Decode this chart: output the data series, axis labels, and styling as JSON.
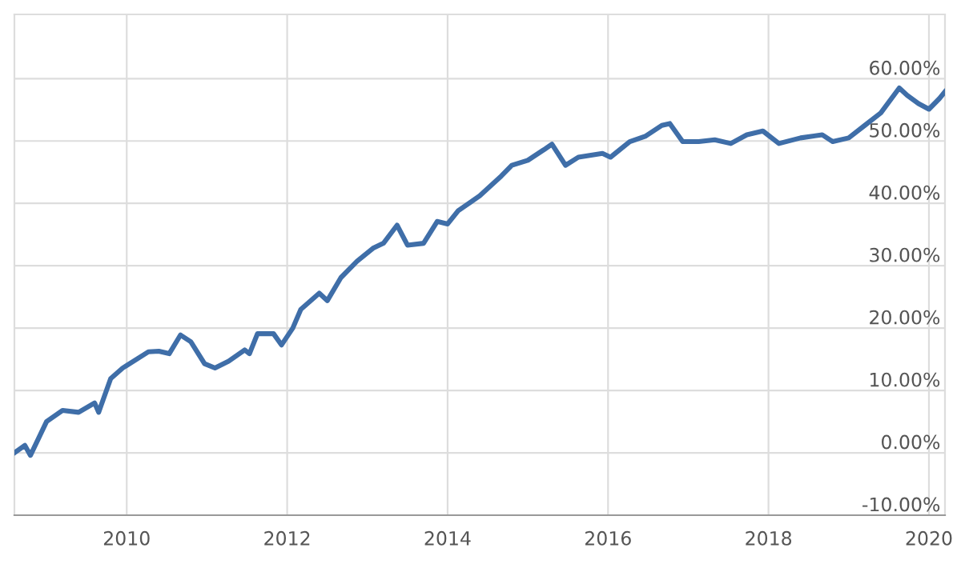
{
  "chart_data": {
    "type": "line",
    "x": [
      2008.6,
      2008.73,
      2008.8,
      2009.0,
      2009.2,
      2009.4,
      2009.6,
      2009.65,
      2009.8,
      2009.95,
      2010.0,
      2010.27,
      2010.4,
      2010.53,
      2010.67,
      2010.8,
      2010.97,
      2011.1,
      2011.27,
      2011.47,
      2011.53,
      2011.63,
      2011.83,
      2011.93,
      2012.07,
      2012.17,
      2012.4,
      2012.5,
      2012.67,
      2012.87,
      2013.07,
      2013.2,
      2013.37,
      2013.5,
      2013.7,
      2013.87,
      2014.0,
      2014.13,
      2014.4,
      2014.67,
      2014.8,
      2015.0,
      2015.2,
      2015.3,
      2015.47,
      2015.63,
      2015.93,
      2016.03,
      2016.27,
      2016.47,
      2016.67,
      2016.77,
      2016.93,
      2017.13,
      2017.33,
      2017.53,
      2017.73,
      2017.93,
      2018.13,
      2018.4,
      2018.67,
      2018.8,
      2019.0,
      2019.2,
      2019.4,
      2019.63,
      2019.73,
      2019.87,
      2020.0,
      2020.13,
      2020.2
    ],
    "series": [
      {
        "color": "#3f6ea8",
        "values": [
          0,
          1.2,
          -0.4,
          5,
          6.8,
          6.5,
          8,
          6.5,
          11.9,
          13.6,
          14,
          16.2,
          16.3,
          15.9,
          18.9,
          17.8,
          14.3,
          13.6,
          14.7,
          16.5,
          15.9,
          19.1,
          19.1,
          17.3,
          20,
          23,
          25.6,
          24.4,
          28.1,
          30.7,
          32.8,
          33.6,
          36.5,
          33.3,
          33.6,
          37.1,
          36.7,
          38.8,
          41.2,
          44.4,
          46.1,
          46.9,
          48.6,
          49.5,
          46.1,
          47.4,
          48,
          47.4,
          49.9,
          50.8,
          52.5,
          52.8,
          49.9,
          49.9,
          50.2,
          49.6,
          51,
          51.6,
          49.6,
          50.5,
          51,
          49.9,
          50.5,
          52.5,
          54.5,
          58.5,
          57.3,
          56,
          55.1,
          56.8,
          57.9
        ]
      }
    ],
    "xlim": [
      2008.6,
      2020.2
    ],
    "xticks": [
      2010,
      2012,
      2014,
      2016,
      2018,
      2020
    ],
    "ylim": [
      -10,
      70.3
    ],
    "yticks": [
      {
        "value": -10,
        "label": "-10.00%"
      },
      {
        "value": 0,
        "label": "0.00%"
      },
      {
        "value": 10,
        "label": "10.00%"
      },
      {
        "value": 20,
        "label": "20.00%"
      },
      {
        "value": 30,
        "label": "30.00%"
      },
      {
        "value": 40,
        "label": "40.00%"
      },
      {
        "value": 50,
        "label": "50.00%"
      },
      {
        "value": 60,
        "label": "60.00%"
      }
    ],
    "grid": true,
    "line_style": "solid",
    "marker": "none"
  }
}
